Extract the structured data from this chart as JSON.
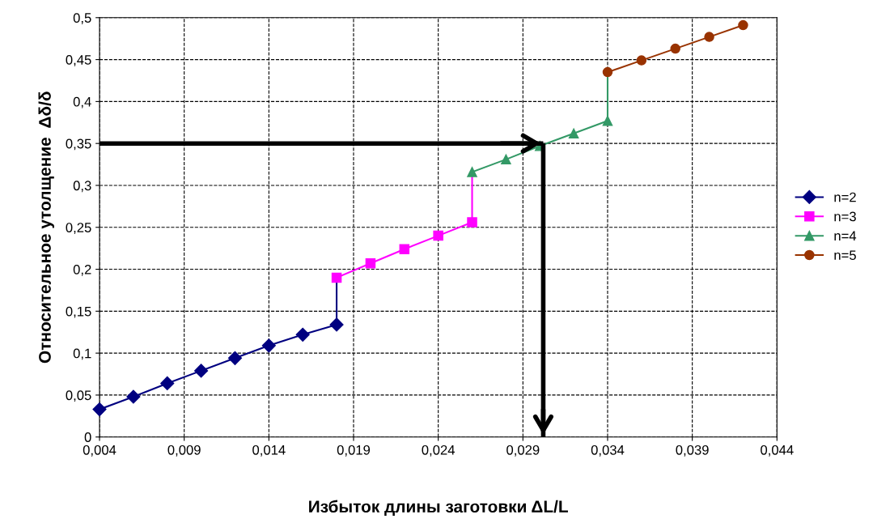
{
  "chart_data": {
    "type": "line",
    "xlabel": "Избыток длины заготовки ΔL/L",
    "ylabel": "Относительное утолщение  Δδ/δ",
    "xlim": [
      0.004,
      0.044
    ],
    "ylim": [
      0,
      0.5
    ],
    "xticks": [
      {
        "value": 0.004,
        "label": "0,004"
      },
      {
        "value": 0.009,
        "label": "0,009"
      },
      {
        "value": 0.014,
        "label": "0,014"
      },
      {
        "value": 0.019,
        "label": "0,019"
      },
      {
        "value": 0.024,
        "label": "0,024"
      },
      {
        "value": 0.029,
        "label": "0,029"
      },
      {
        "value": 0.034,
        "label": "0,034"
      },
      {
        "value": 0.039,
        "label": "0,039"
      },
      {
        "value": 0.044,
        "label": "0,044"
      }
    ],
    "yticks": [
      {
        "value": 0,
        "label": "0"
      },
      {
        "value": 0.05,
        "label": "0,05"
      },
      {
        "value": 0.1,
        "label": "0,1"
      },
      {
        "value": 0.15,
        "label": "0,15"
      },
      {
        "value": 0.2,
        "label": "0,2"
      },
      {
        "value": 0.25,
        "label": "0,25"
      },
      {
        "value": 0.3,
        "label": "0,3"
      },
      {
        "value": 0.35,
        "label": "0,35"
      },
      {
        "value": 0.4,
        "label": "0,4"
      },
      {
        "value": 0.45,
        "label": "0,45"
      },
      {
        "value": 0.5,
        "label": "0,5"
      }
    ],
    "grid": true,
    "legend": "right",
    "line_style": "solid",
    "series": [
      {
        "name": "n=2",
        "color": "#000080",
        "marker": "diamond",
        "x": [
          0.004,
          0.006,
          0.008,
          0.01,
          0.012,
          0.014,
          0.016,
          0.018,
          0.018
        ],
        "values": [
          0.033,
          0.048,
          0.064,
          0.079,
          0.094,
          0.109,
          0.122,
          0.134,
          0.19
        ]
      },
      {
        "name": "n=3",
        "color": "#ff00ff",
        "marker": "square",
        "x": [
          0.018,
          0.02,
          0.022,
          0.024,
          0.026,
          0.026
        ],
        "values": [
          0.19,
          0.207,
          0.224,
          0.24,
          0.256,
          0.316
        ]
      },
      {
        "name": "n=4",
        "color": "#339966",
        "marker": "triangle",
        "x": [
          0.026,
          0.028,
          0.03,
          0.032,
          0.034,
          0.034
        ],
        "values": [
          0.316,
          0.331,
          0.347,
          0.362,
          0.377,
          0.435
        ]
      },
      {
        "name": "n=5",
        "color": "#993300",
        "marker": "circle",
        "x": [
          0.034,
          0.036,
          0.038,
          0.04,
          0.042
        ],
        "values": [
          0.435,
          0.449,
          0.463,
          0.477,
          0.491
        ]
      },
      {
        "color": "#000000",
        "marker": "none",
        "x": [
          0.004,
          0.0302
        ],
        "values": [
          0.35,
          0.35
        ]
      },
      {
        "color": "#000000",
        "marker": "none",
        "x": [
          0.0302,
          0.0302
        ],
        "values": [
          0.35,
          0
        ]
      }
    ]
  }
}
